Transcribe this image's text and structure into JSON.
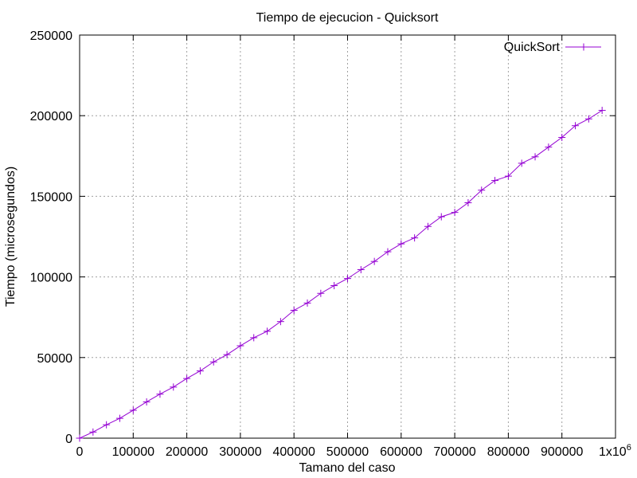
{
  "chart_data": {
    "type": "line",
    "title": "Tiempo de ejecucion - Quicksort",
    "xlabel": "Tamano del caso",
    "ylabel": "Tiempo (microsegundos)",
    "xlim": [
      0,
      1000000
    ],
    "ylim": [
      0,
      250000
    ],
    "xticks": [
      0,
      100000,
      200000,
      300000,
      400000,
      500000,
      600000,
      700000,
      800000,
      900000
    ],
    "xtick_labels": [
      "0",
      "100000",
      "200000",
      "300000",
      "400000",
      "500000",
      "600000",
      "700000",
      "800000",
      "900000"
    ],
    "x_multiplier_label": "1x10",
    "x_multiplier_exp": "6",
    "yticks": [
      0,
      50000,
      100000,
      150000,
      200000,
      250000
    ],
    "ytick_labels": [
      "0",
      "50000",
      "100000",
      "150000",
      "200000",
      "250000"
    ],
    "grid": true,
    "legend_position": "top-right",
    "series": [
      {
        "name": "QuickSort",
        "color": "#9400d3",
        "marker": "plus",
        "x": [
          0,
          25000,
          50000,
          75000,
          100000,
          125000,
          150000,
          175000,
          200000,
          225000,
          250000,
          275000,
          300000,
          325000,
          350000,
          375000,
          400000,
          425000,
          450000,
          475000,
          500000,
          525000,
          550000,
          575000,
          600000,
          625000,
          650000,
          675000,
          700000,
          725000,
          750000,
          775000,
          800000,
          825000,
          850000,
          875000,
          900000,
          925000,
          950000,
          975000
        ],
        "y": [
          0,
          3800,
          8300,
          12300,
          17300,
          22500,
          27300,
          31700,
          37000,
          41700,
          47300,
          51800,
          57300,
          62300,
          66300,
          72300,
          79300,
          83800,
          89800,
          94600,
          99000,
          104500,
          109600,
          115600,
          120500,
          124200,
          131300,
          137300,
          140000,
          146000,
          153800,
          159800,
          162500,
          170500,
          174500,
          180500,
          186500,
          193800,
          198000,
          203300
        ]
      }
    ]
  }
}
